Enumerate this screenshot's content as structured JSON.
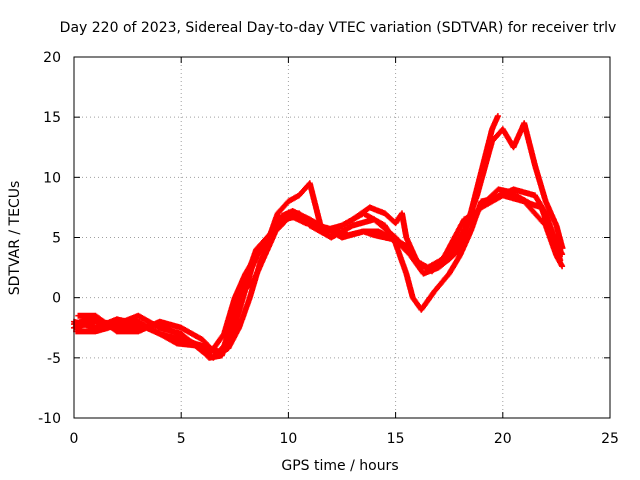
{
  "chart_data": {
    "type": "scatter",
    "title": "Day 220 of 2023, Sidereal Day-to-day VTEC variation (SDTVAR) for receiver trlv",
    "xlabel": "GPS time / hours",
    "ylabel": "SDTVAR / TECUs",
    "xlim": [
      0,
      25
    ],
    "ylim": [
      -10,
      20
    ],
    "xticks": [
      0,
      5,
      10,
      15,
      20,
      25
    ],
    "yticks": [
      -10,
      -5,
      0,
      5,
      10,
      15,
      20
    ],
    "grid": true,
    "marker": "+",
    "color": "#ff0000",
    "series": [
      {
        "name": "trace-1",
        "points": [
          [
            0,
            -2.5
          ],
          [
            1,
            -2
          ],
          [
            2,
            -2.2
          ],
          [
            3,
            -1.5
          ],
          [
            4,
            -2.5
          ],
          [
            5,
            -3
          ],
          [
            6,
            -4.5
          ],
          [
            6.5,
            -5
          ],
          [
            7,
            -4
          ],
          [
            7.5,
            -1.5
          ],
          [
            8,
            1.5
          ],
          [
            8.5,
            4
          ],
          [
            9,
            5
          ],
          [
            9.5,
            6
          ],
          [
            10,
            7
          ],
          [
            10.5,
            7
          ],
          [
            11,
            6
          ],
          [
            12,
            5
          ],
          [
            13,
            6
          ],
          [
            14,
            6.5
          ],
          [
            15,
            5
          ],
          [
            15.5,
            4
          ],
          [
            16,
            3
          ],
          [
            16.5,
            2.5
          ],
          [
            17,
            3
          ],
          [
            17.5,
            3.5
          ],
          [
            18,
            5
          ],
          [
            18.5,
            6.5
          ],
          [
            19,
            7.5
          ],
          [
            20,
            8.5
          ],
          [
            21,
            8
          ],
          [
            22,
            6
          ],
          [
            22.5,
            3.5
          ],
          [
            22.8,
            2.5
          ]
        ]
      },
      {
        "name": "trace-2",
        "points": [
          [
            0,
            -2
          ],
          [
            1,
            -2.5
          ],
          [
            2,
            -1.8
          ],
          [
            3,
            -2.2
          ],
          [
            4,
            -3
          ],
          [
            5,
            -3.5
          ],
          [
            6,
            -4
          ],
          [
            6.8,
            -4.5
          ],
          [
            7.3,
            -3.5
          ],
          [
            7.8,
            -0.5
          ],
          [
            8.3,
            2.5
          ],
          [
            8.8,
            4.5
          ],
          [
            9.3,
            5.5
          ],
          [
            9.8,
            6.5
          ],
          [
            10.5,
            6.8
          ],
          [
            11.5,
            5.5
          ],
          [
            12.5,
            6
          ],
          [
            13.5,
            7
          ],
          [
            14.5,
            6
          ],
          [
            15,
            4.5
          ],
          [
            15.5,
            2
          ],
          [
            15.8,
            0
          ],
          [
            16.2,
            -1
          ],
          [
            16.8,
            0.5
          ],
          [
            17.5,
            2
          ],
          [
            18,
            3.5
          ],
          [
            18.5,
            5.5
          ],
          [
            19,
            8
          ],
          [
            19.5,
            8.2
          ],
          [
            20.5,
            9
          ],
          [
            21.5,
            8.5
          ],
          [
            22,
            7
          ],
          [
            22.5,
            4.5
          ],
          [
            22.8,
            3.5
          ]
        ]
      },
      {
        "name": "trace-3",
        "points": [
          [
            0.2,
            -1.5
          ],
          [
            1,
            -1.5
          ],
          [
            2,
            -2.8
          ],
          [
            3,
            -2.8
          ],
          [
            4,
            -2
          ],
          [
            5,
            -2.5
          ],
          [
            6,
            -3.5
          ],
          [
            6.7,
            -4.8
          ],
          [
            7.2,
            -4.2
          ],
          [
            7.7,
            -2.5
          ],
          [
            8.2,
            0
          ],
          [
            8.7,
            3
          ],
          [
            9.2,
            5
          ],
          [
            9.7,
            6.8
          ],
          [
            10.2,
            7.2
          ],
          [
            11,
            6.5
          ],
          [
            12,
            5.5
          ],
          [
            13,
            6.5
          ],
          [
            13.8,
            7.5
          ],
          [
            14.5,
            7
          ],
          [
            15,
            6.2
          ],
          [
            15.3,
            7
          ],
          [
            15.5,
            5
          ],
          [
            16,
            3
          ],
          [
            16.5,
            2.5
          ],
          [
            17.2,
            2.8
          ],
          [
            17.8,
            4
          ],
          [
            18.3,
            6
          ],
          [
            18.8,
            8.5
          ],
          [
            19.5,
            13
          ],
          [
            20,
            14
          ],
          [
            20.5,
            12.5
          ],
          [
            21,
            14.5
          ],
          [
            21.5,
            11
          ],
          [
            22,
            8
          ],
          [
            22.5,
            6
          ],
          [
            22.8,
            4
          ]
        ]
      },
      {
        "name": "trace-4",
        "points": [
          [
            0.1,
            -2.8
          ],
          [
            1,
            -2.8
          ],
          [
            2,
            -2.3
          ],
          [
            3,
            -2.5
          ],
          [
            4,
            -2.2
          ],
          [
            5,
            -3.2
          ],
          [
            6,
            -4.2
          ],
          [
            6.4,
            -4.5
          ],
          [
            7,
            -3
          ],
          [
            7.5,
            0
          ],
          [
            8,
            2
          ],
          [
            8.5,
            3.5
          ],
          [
            9,
            4.5
          ],
          [
            9.5,
            7
          ],
          [
            10,
            8
          ],
          [
            10.5,
            8.5
          ],
          [
            11,
            9.5
          ],
          [
            11.5,
            6
          ],
          [
            12.5,
            5
          ],
          [
            13.5,
            5.5
          ],
          [
            14,
            5.2
          ],
          [
            15,
            4.8
          ],
          [
            15.7,
            3.5
          ],
          [
            16.3,
            2
          ],
          [
            17,
            2.5
          ],
          [
            17.5,
            3.2
          ],
          [
            18,
            4
          ],
          [
            18.5,
            7
          ],
          [
            19,
            10.5
          ],
          [
            19.5,
            14
          ],
          [
            19.8,
            15.2
          ]
        ]
      },
      {
        "name": "trace-5",
        "points": [
          [
            0,
            -2.2
          ],
          [
            0.8,
            -1.7
          ],
          [
            1.8,
            -2.5
          ],
          [
            2.8,
            -1.8
          ],
          [
            3.8,
            -2.8
          ],
          [
            4.8,
            -3.8
          ],
          [
            5.8,
            -4
          ],
          [
            6.3,
            -5
          ],
          [
            6.9,
            -4.8
          ],
          [
            7.4,
            -2
          ],
          [
            7.9,
            0.5
          ],
          [
            8.4,
            1.5
          ],
          [
            8.9,
            3.5
          ],
          [
            9.4,
            5.5
          ],
          [
            10.1,
            6.8
          ],
          [
            10.8,
            6.2
          ],
          [
            11.8,
            5.8
          ],
          [
            12.8,
            5.2
          ],
          [
            13.5,
            5.5
          ],
          [
            14.2,
            5.5
          ],
          [
            15,
            4.8
          ],
          [
            15.6,
            4.2
          ],
          [
            16.1,
            2.8
          ],
          [
            16.7,
            2.2
          ],
          [
            17.3,
            3.5
          ],
          [
            18.2,
            6.5
          ],
          [
            18.7,
            7
          ],
          [
            19.2,
            8
          ],
          [
            19.8,
            9
          ],
          [
            20.3,
            8.8
          ],
          [
            20.8,
            8.3
          ],
          [
            21.3,
            7.8
          ],
          [
            21.8,
            7.5
          ],
          [
            22.3,
            5
          ],
          [
            22.7,
            3
          ]
        ]
      }
    ]
  }
}
